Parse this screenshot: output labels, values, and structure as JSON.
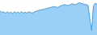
{
  "chart_data": {
    "type": "area",
    "values": [
      62,
      58,
      60,
      56,
      60,
      57,
      59,
      56,
      60,
      57,
      59,
      57,
      60,
      57,
      59,
      57,
      60,
      58,
      57,
      59,
      61,
      62,
      63,
      64,
      65,
      66,
      67,
      68,
      69,
      70,
      71,
      70,
      69,
      71,
      73,
      74,
      75,
      74,
      73,
      75,
      77,
      76,
      75,
      77,
      79,
      78,
      77,
      76,
      75,
      74,
      45,
      20,
      72,
      78,
      76
    ],
    "ylim": [
      10,
      85
    ],
    "tick_labels": false,
    "grid": false
  }
}
